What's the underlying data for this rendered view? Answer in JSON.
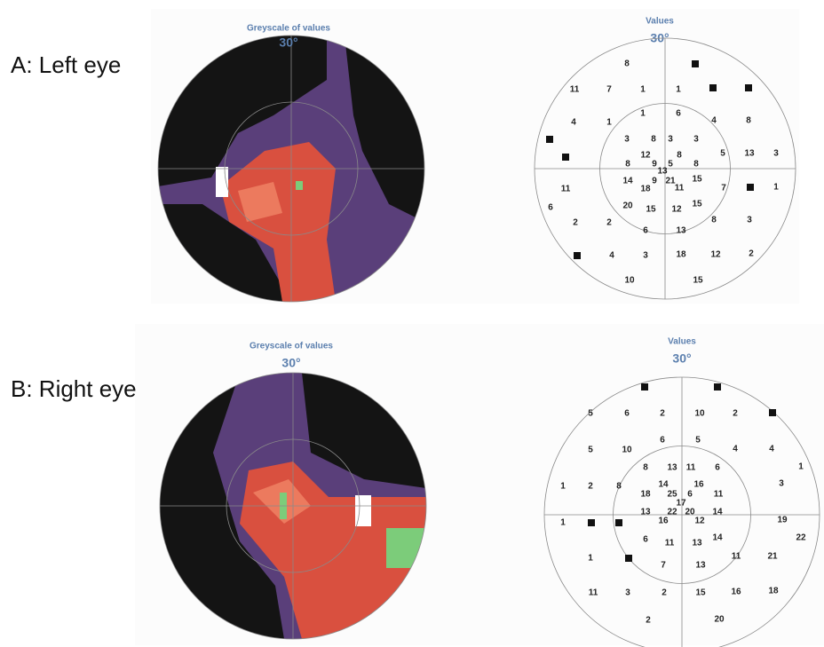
{
  "panels": [
    {
      "label": "A: Left eye",
      "greyscale": {
        "title": "Greyscale of values",
        "degrees": "30°"
      },
      "values": {
        "title": "Values",
        "degrees": "30°",
        "numbers": [
          8,
          11,
          7,
          1,
          1,
          4,
          1,
          1,
          6,
          4,
          8,
          3,
          8,
          3,
          3,
          12,
          8,
          5,
          13,
          3,
          8,
          9,
          5,
          8,
          13,
          14,
          9,
          21,
          15,
          7,
          1,
          18,
          11,
          11,
          6,
          20,
          15,
          12,
          15,
          2,
          2,
          8,
          3,
          6,
          13,
          4,
          3,
          18,
          12,
          2,
          10,
          15
        ]
      }
    },
    {
      "label": "B: Right eye",
      "greyscale": {
        "title": "Greyscale of values",
        "degrees": "30°"
      },
      "values": {
        "title": "Values",
        "degrees": "30°",
        "numbers": [
          5,
          6,
          2,
          10,
          2,
          5,
          10,
          6,
          5,
          4,
          4,
          1,
          8,
          13,
          11,
          6,
          3,
          1,
          2,
          8,
          14,
          16,
          18,
          25,
          6,
          11,
          17,
          13,
          22,
          20,
          14,
          16,
          12,
          19,
          1,
          22,
          6,
          11,
          13,
          14,
          1,
          21,
          11,
          7,
          13,
          11,
          3,
          2,
          15,
          16,
          18,
          2,
          20
        ]
      }
    }
  ]
}
